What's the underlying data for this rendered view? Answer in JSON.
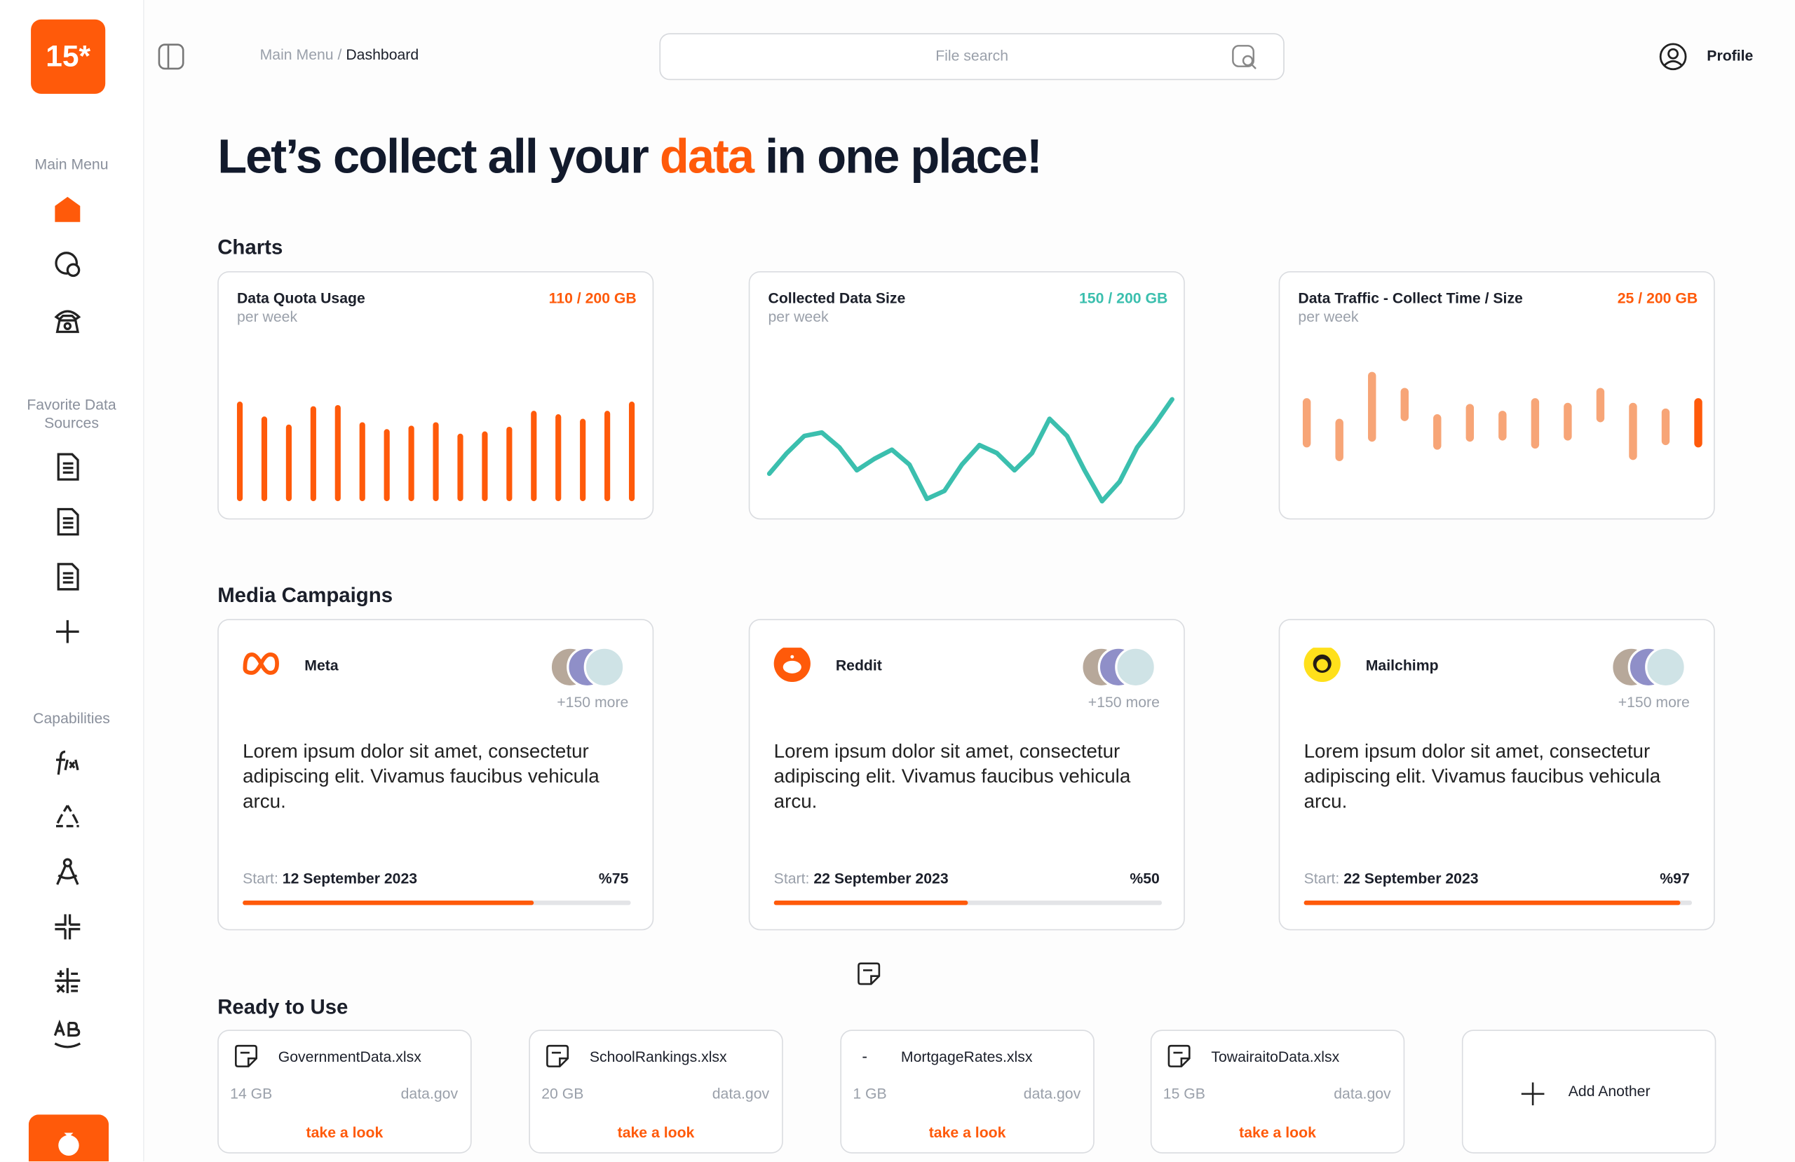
{
  "sidebar": {
    "logo": "15*",
    "sections": [
      "Main Menu",
      "Favorite Data Sources",
      "Capabilities"
    ]
  },
  "header": {
    "breadcrumb_parent": "Main Menu /",
    "breadcrumb_current": "Dashboard",
    "search_placeholder": "File search",
    "profile": "Profile"
  },
  "headline": {
    "before": "Let’s collect all your ",
    "highlight": "data",
    "after": " in one place!"
  },
  "charts_section": {
    "title": "Charts",
    "charts": [
      {
        "type": "bar",
        "title": "Data Quota Usage",
        "subtitle": "per week",
        "used": "110",
        "limit": "/ 200 GB",
        "color": "#ff5a0a",
        "values": [
          87,
          74,
          67,
          83,
          84,
          69,
          63,
          66,
          69,
          59,
          61,
          65,
          79,
          76,
          72,
          79,
          87
        ]
      },
      {
        "type": "line",
        "title": "Collected Data Size",
        "subtitle": "per week",
        "used": "150",
        "limit": "/ 200 GB",
        "color": "#3bbfae",
        "values": [
          27,
          45,
          60,
          63,
          50,
          30,
          40,
          48,
          35,
          5,
          12,
          35,
          52,
          45,
          30,
          45,
          75,
          60,
          30,
          3,
          20,
          50,
          70,
          92
        ]
      },
      {
        "type": "range-bar",
        "title": "Data Traffic - Collect Time / Size",
        "subtitle": "per week",
        "used": "25",
        "limit": "/ 200 GB",
        "color": "#f7a577",
        "highlight_color": "#ff5a0a",
        "lows": [
          30,
          18,
          35,
          53,
          28,
          35,
          36,
          29,
          36,
          52,
          19,
          32,
          30
        ],
        "highs": [
          73,
          55,
          96,
          82,
          59,
          68,
          62,
          73,
          69,
          82,
          69,
          64,
          73
        ]
      }
    ]
  },
  "campaigns": {
    "title": "Media Campaigns",
    "items": [
      {
        "name": "Meta",
        "more": "+150 more",
        "description": "Lorem ipsum dolor sit amet, consectetur adipiscing elit. Vivamus faucibus vehicula arcu.",
        "start_label": "Start:",
        "start_date": "12 September 2023",
        "progress": {
          "value": 75,
          "label": "%75"
        }
      },
      {
        "name": "Reddit",
        "more": "+150 more",
        "description": "Lorem ipsum dolor sit amet, consectetur adipiscing elit. Vivamus faucibus vehicula arcu.",
        "start_label": "Start:",
        "start_date": "22 September 2023",
        "progress": {
          "value": 50,
          "label": "%50"
        }
      },
      {
        "name": "Mailchimp",
        "more": "+150 more",
        "description": "Lorem ipsum dolor sit amet, consectetur adipiscing elit. Vivamus faucibus vehicula arcu.",
        "start_label": "Start:",
        "start_date": "22 September 2023",
        "progress": {
          "value": 97,
          "label": "%97"
        }
      }
    ]
  },
  "ready": {
    "title": "Ready to Use",
    "files": [
      {
        "name": "GovernmentData.xlsx",
        "size": "14 GB",
        "source": "data.gov",
        "action": "take a look"
      },
      {
        "name": "SchoolRankings.xlsx",
        "size": "20 GB",
        "source": "data.gov",
        "action": "take a look"
      },
      {
        "icon": "-",
        "name": "MortgageRates.xlsx",
        "size": "1 GB",
        "source": "data.gov",
        "action": "take a look"
      },
      {
        "name": "TowairaitoData.xlsx",
        "size": "15 GB",
        "source": "data.gov",
        "action": "take a look"
      }
    ],
    "add": "Add Another"
  }
}
